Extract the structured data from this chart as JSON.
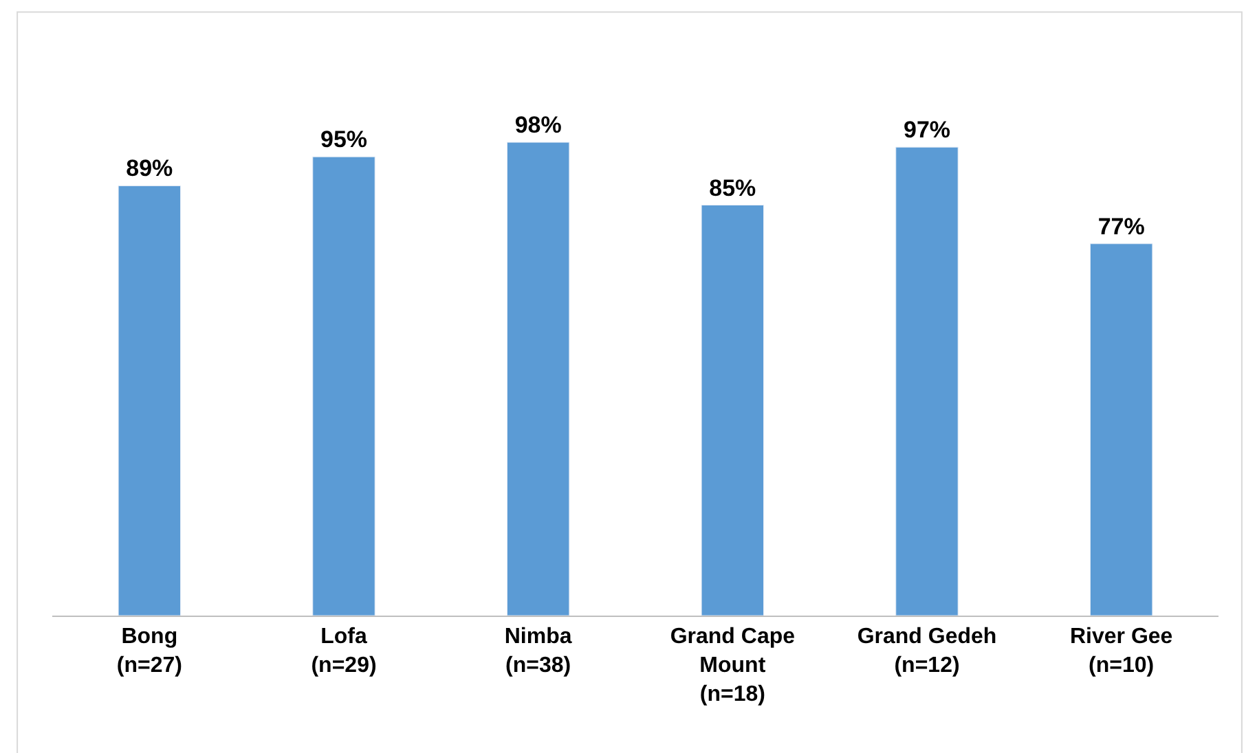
{
  "chart_data": {
    "type": "bar",
    "categories": [
      "Bong\n(n=27)",
      "Lofa\n(n=29)",
      "Nimba\n(n=38)",
      "Grand Cape\nMount\n(n=18)",
      "Grand Gedeh\n(n=12)",
      "River Gee\n(n=10)"
    ],
    "values": [
      89,
      95,
      98,
      85,
      97,
      77
    ],
    "value_labels": [
      "89%",
      "95%",
      "98%",
      "85%",
      "97%",
      "77%"
    ],
    "color": "#5b9bd5"
  }
}
